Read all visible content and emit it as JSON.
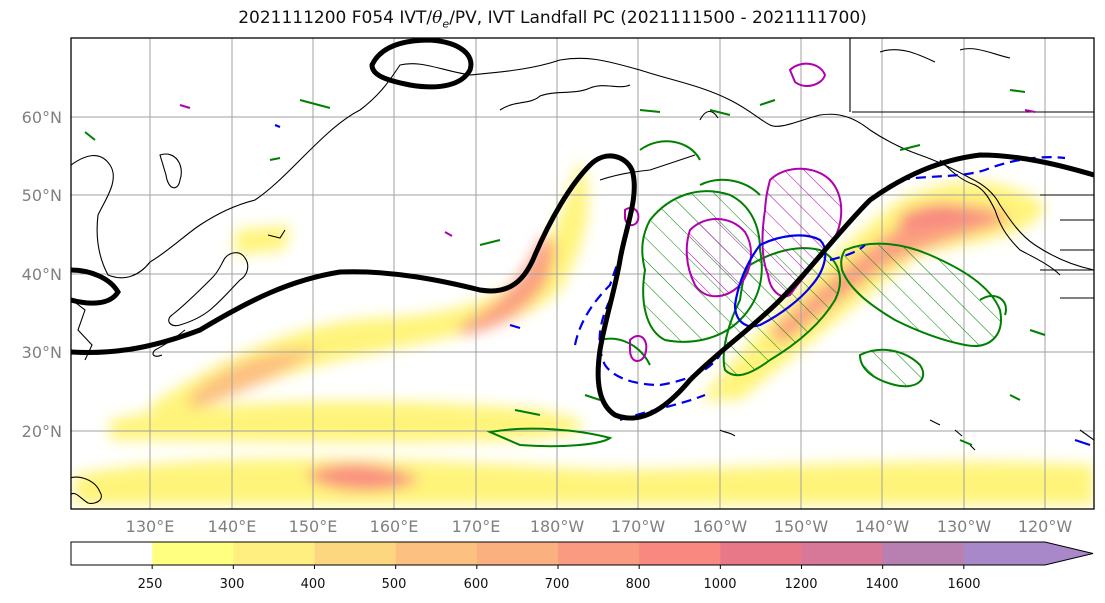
{
  "title": {
    "before": "2021111200 F054 IVT/",
    "theta": "θ",
    "theta_sub": "e",
    "after": "/PV, IVT Landfall PC (2021111500 - 2021111700)"
  },
  "map": {
    "lat_labels": [
      "60°N",
      "50°N",
      "40°N",
      "30°N",
      "20°N"
    ],
    "lon_labels": [
      "130°E",
      "140°E",
      "150°E",
      "160°E",
      "170°E",
      "180°W",
      "170°W",
      "160°W",
      "150°W",
      "140°W",
      "130°W",
      "120°W"
    ],
    "label_color": "#808080",
    "gridline_color": "#a0a0a0",
    "coastline_color": "#000000",
    "contour_colors": {
      "theta_e": "#000000",
      "pv_green": "#008000",
      "pc_magenta": "#b000b0",
      "pc_blue": "#0000ee"
    }
  },
  "colorbar": {
    "ticks": [
      "250",
      "300",
      "400",
      "500",
      "600",
      "700",
      "800",
      "1000",
      "1200",
      "1400",
      "1600"
    ],
    "colors": [
      "#ffffff",
      "#ffff80",
      "#ffee80",
      "#fdd680",
      "#fcc080",
      "#fbb080",
      "#fa9a80",
      "#f88880",
      "#e87888",
      "#d87898",
      "#b880b0",
      "#a888c8"
    ]
  }
}
